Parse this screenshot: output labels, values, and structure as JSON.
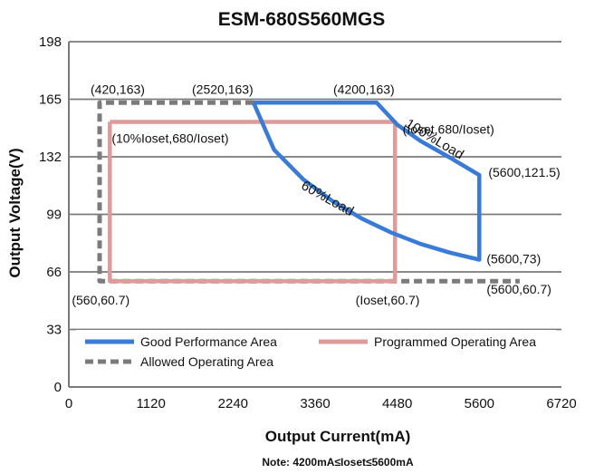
{
  "chart_data": {
    "type": "line",
    "title": "ESM-680S560MGS",
    "xlabel": "Output Current(mA)",
    "ylabel": "Output Voltage(V)",
    "note": "Note:  4200mA≤Ioset≤5600mA",
    "xlim": [
      0,
      6720
    ],
    "ylim": [
      0,
      198
    ],
    "x_ticks": [
      0,
      1120,
      2240,
      3360,
      4480,
      5600,
      6720
    ],
    "y_ticks": [
      0,
      33,
      66,
      99,
      132,
      165,
      198
    ],
    "grid": "horizontal",
    "legend_position": "bottom-inside",
    "series": [
      {
        "name": "Good Performance Area",
        "color": "#3a7bd5",
        "style": "solid",
        "points": [
          [
            2520,
            163
          ],
          [
            4200,
            163
          ],
          [
            4480,
            150.4
          ],
          [
            4800,
            141
          ],
          [
            5200,
            131.5
          ],
          [
            5600,
            121.5
          ],
          [
            5600,
            73
          ],
          [
            5200,
            77
          ],
          [
            4800,
            82
          ],
          [
            4400,
            88.5
          ],
          [
            4000,
            96.5
          ],
          [
            3600,
            106.5
          ],
          [
            3200,
            119
          ],
          [
            2800,
            136
          ],
          [
            2520,
            163
          ]
        ]
      },
      {
        "name": "Programmed Operating Area",
        "color": "#df9a9a",
        "style": "solid",
        "points": [
          [
            560,
            152
          ],
          [
            4450,
            152
          ],
          [
            4450,
            60.7
          ],
          [
            560,
            60.7
          ],
          [
            560,
            152
          ]
        ]
      },
      {
        "name": "Allowed Operating Area",
        "color": "#7b7b7b",
        "style": "dashed",
        "points": [
          [
            2520,
            163
          ],
          [
            420,
            163
          ],
          [
            420,
            60.7
          ],
          [
            5600,
            60.7
          ],
          [
            6150,
            60.7
          ]
        ]
      }
    ],
    "curve_labels": [
      {
        "text": "100%Load",
        "x": 4960,
        "y": 140
      },
      {
        "text": "60%Load",
        "x": 3500,
        "y": 106
      }
    ],
    "annotations": [
      {
        "text": "(420,163)",
        "x": 420,
        "y": 163
      },
      {
        "text": "(2520,163)",
        "x": 2520,
        "y": 163
      },
      {
        "text": "(4200,163)",
        "x": 4200,
        "y": 163
      },
      {
        "text": "(Ioset,680/Ioset)",
        "x": 4480,
        "y": 150.4
      },
      {
        "text": "(10%Ioset,680/Ioset)",
        "x": 560,
        "y": 152
      },
      {
        "text": "(5600,121.5)",
        "x": 5600,
        "y": 121.5
      },
      {
        "text": "(5600,73)",
        "x": 5600,
        "y": 73
      },
      {
        "text": "(5600,60.7)",
        "x": 5600,
        "y": 60.7
      },
      {
        "text": "(560,60.7)",
        "x": 560,
        "y": 60.7
      },
      {
        "text": "(Ioset,60.7)",
        "x": 4480,
        "y": 60.7
      }
    ]
  }
}
